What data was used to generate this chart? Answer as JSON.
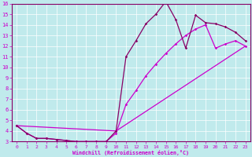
{
  "xlabel": "Windchill (Refroidissement éolien,°C)",
  "bg_color": "#c0eaec",
  "line_color_bright": "#cc00cc",
  "line_color_dark": "#880066",
  "xlim": [
    -0.5,
    23.5
  ],
  "ylim": [
    3,
    16
  ],
  "xticks": [
    0,
    1,
    2,
    3,
    4,
    5,
    6,
    7,
    8,
    9,
    10,
    11,
    12,
    13,
    14,
    15,
    16,
    17,
    18,
    19,
    20,
    21,
    22,
    23
  ],
  "yticks": [
    3,
    4,
    5,
    6,
    7,
    8,
    9,
    10,
    11,
    12,
    13,
    14,
    15,
    16
  ],
  "line1_x": [
    0,
    1,
    2,
    3,
    4,
    5,
    6,
    7,
    8,
    9,
    10,
    11,
    12,
    13,
    14,
    15,
    16,
    17,
    18,
    19,
    20,
    21,
    22,
    23
  ],
  "line1_y": [
    4.5,
    3.8,
    3.3,
    3.3,
    3.2,
    3.1,
    3.0,
    3.0,
    3.0,
    3.0,
    4.0,
    11.0,
    12.5,
    14.1,
    15.0,
    16.2,
    14.5,
    11.8,
    14.9,
    14.2,
    14.1,
    13.8,
    13.3,
    12.5
  ],
  "line2_x": [
    0,
    1,
    2,
    3,
    4,
    5,
    6,
    7,
    8,
    9,
    10,
    11,
    12,
    13,
    14,
    15,
    16,
    17,
    18,
    19,
    20,
    21,
    22,
    23
  ],
  "line2_y": [
    4.5,
    3.8,
    3.3,
    3.3,
    3.2,
    3.1,
    3.0,
    3.0,
    3.0,
    3.0,
    3.8,
    6.5,
    7.8,
    9.2,
    10.3,
    11.3,
    12.2,
    13.0,
    13.6,
    14.0,
    11.8,
    12.2,
    12.5,
    12.0
  ],
  "line3_x": [
    0,
    10,
    23
  ],
  "line3_y": [
    4.5,
    4.0,
    12.0
  ]
}
